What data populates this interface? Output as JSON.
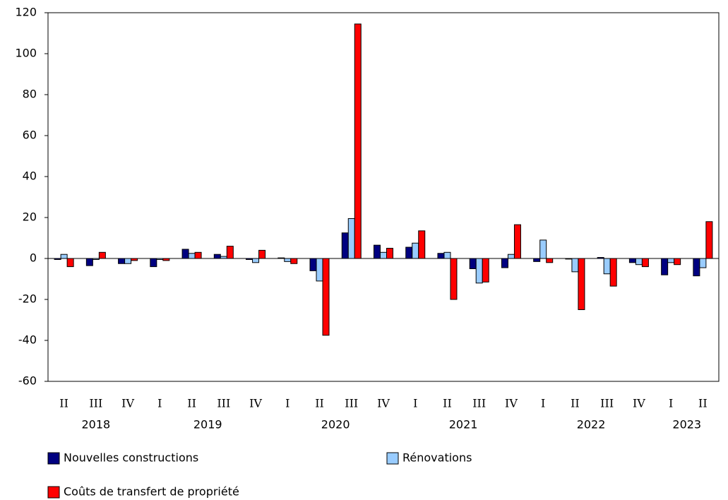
{
  "chart_data": {
    "type": "bar",
    "categories": [
      "II",
      "III",
      "IV",
      "I",
      "II",
      "III",
      "IV",
      "I",
      "II",
      "III",
      "IV",
      "I",
      "II",
      "III",
      "IV",
      "I",
      "II",
      "III",
      "IV",
      "I",
      "II"
    ],
    "years": [
      "2018",
      "2018",
      "2018",
      "2019",
      "2019",
      "2019",
      "2019",
      "2020",
      "2020",
      "2020",
      "2020",
      "2021",
      "2021",
      "2021",
      "2021",
      "2022",
      "2022",
      "2022",
      "2022",
      "2023",
      "2023"
    ],
    "series": [
      {
        "name": "Nouvelles constructions",
        "color": "#000080",
        "values": [
          -0.5,
          -3.5,
          -2.5,
          -4,
          4.5,
          2,
          -0.5,
          0.3,
          -6,
          12.5,
          6.5,
          5.5,
          2.5,
          -5,
          -4.5,
          -1.5,
          -0.3,
          0.5,
          -2,
          -8,
          -8.5
        ]
      },
      {
        "name": "Rénovations",
        "color": "#99ccff",
        "values": [
          2,
          -0.5,
          -2.5,
          -0.5,
          2.5,
          1,
          -2,
          -1.5,
          -11,
          19.5,
          3,
          7.5,
          3,
          -12,
          2,
          9,
          -6.5,
          -7.5,
          -3,
          -2,
          -4.5
        ]
      },
      {
        "name": "Coûts de transfert de propriété",
        "color": "#ff0000",
        "values": [
          -4,
          3,
          -1,
          -1,
          3,
          6,
          4,
          -2.5,
          -37.5,
          114.5,
          5,
          13.5,
          -20,
          -11.5,
          16.5,
          -2,
          -25,
          -13.5,
          -4,
          -3,
          18
        ]
      }
    ],
    "ylim": [
      -60,
      120
    ],
    "yticks": [
      -60,
      -40,
      -20,
      0,
      20,
      40,
      60,
      80,
      100,
      120
    ],
    "grid": false
  }
}
